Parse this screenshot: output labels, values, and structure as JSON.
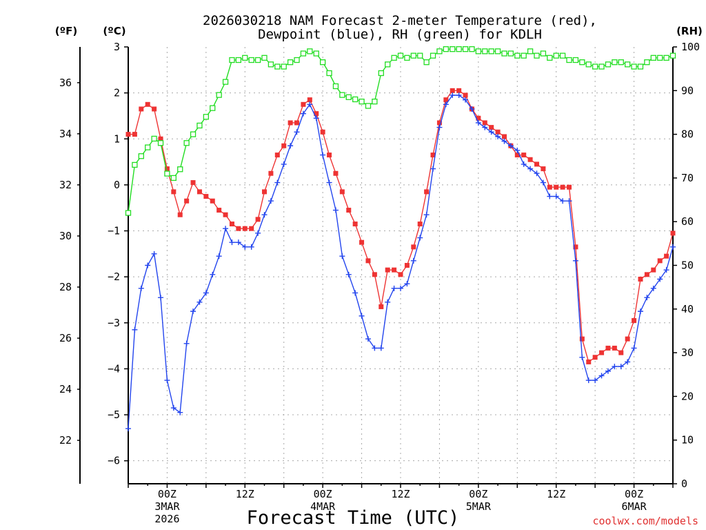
{
  "chart_data": {
    "type": "line",
    "title_line1": "2026030218 NAM Forecast 2-meter Temperature (red),",
    "title_line2": "Dewpoint (blue), RH (green) for KDLH",
    "xlabel": "Forecast Time (UTC)",
    "credit": "coolwx.com/models",
    "units": {
      "fahrenheit": "(ºF)",
      "celsius": "(ºC)",
      "rh": "(RH)"
    },
    "x_unit": "forecast hour",
    "x_range": [
      0,
      84
    ],
    "x_tick_labels": [
      {
        "hour": 6,
        "lines": [
          "00Z",
          "3MAR",
          "2026"
        ]
      },
      {
        "hour": 18,
        "lines": [
          "12Z"
        ]
      },
      {
        "hour": 30,
        "lines": [
          "00Z",
          "4MAR"
        ]
      },
      {
        "hour": 42,
        "lines": [
          "12Z"
        ]
      },
      {
        "hour": 54,
        "lines": [
          "00Z",
          "5MAR"
        ]
      },
      {
        "hour": 66,
        "lines": [
          "12Z"
        ]
      },
      {
        "hour": 78,
        "lines": [
          "00Z",
          "6MAR"
        ]
      }
    ],
    "y_left_celsius": {
      "range": [
        -6.5,
        3
      ],
      "ticks": [
        "3",
        "2",
        "1",
        "0",
        "−1",
        "−2",
        "−3",
        "−4",
        "−5",
        "−6"
      ],
      "tick_values": [
        3,
        2,
        1,
        0,
        -1,
        -2,
        -3,
        -4,
        -5,
        -6
      ]
    },
    "y_left_fahrenheit": {
      "range": [
        20.3,
        37.4
      ],
      "ticks": [
        "36",
        "34",
        "32",
        "30",
        "28",
        "26",
        "24",
        "22"
      ],
      "tick_values": [
        36,
        34,
        32,
        30,
        28,
        26,
        24,
        22
      ]
    },
    "y_right_rh": {
      "range": [
        0,
        100
      ],
      "ticks": [
        "100",
        "90",
        "80",
        "70",
        "60",
        "50",
        "40",
        "30",
        "20",
        "10",
        "0"
      ],
      "tick_values": [
        100,
        90,
        80,
        70,
        60,
        50,
        40,
        30,
        20,
        10,
        0
      ]
    },
    "grid": true,
    "series": [
      {
        "name": "Temperature",
        "axis": "celsius",
        "color": "#ee3333",
        "marker": "filled-square",
        "x": [
          0,
          1,
          2,
          3,
          4,
          5,
          6,
          7,
          8,
          9,
          10,
          11,
          12,
          13,
          14,
          15,
          16,
          17,
          18,
          19,
          20,
          21,
          22,
          23,
          24,
          25,
          26,
          27,
          28,
          29,
          30,
          31,
          32,
          33,
          34,
          35,
          36,
          37,
          38,
          39,
          40,
          41,
          42,
          43,
          44,
          45,
          46,
          47,
          48,
          49,
          50,
          51,
          52,
          53,
          54,
          55,
          56,
          57,
          58,
          59,
          60,
          61,
          62,
          63,
          64,
          65,
          66,
          67,
          68,
          69,
          70,
          71,
          72,
          73,
          74,
          75,
          76,
          77,
          78,
          79,
          80,
          81,
          82,
          83,
          84
        ],
        "values": [
          1.1,
          1.1,
          1.65,
          1.75,
          1.65,
          1.0,
          0.35,
          -0.15,
          -0.65,
          -0.35,
          0.05,
          -0.15,
          -0.25,
          -0.35,
          -0.55,
          -0.65,
          -0.85,
          -0.95,
          -0.95,
          -0.95,
          -0.75,
          -0.15,
          0.25,
          0.65,
          0.85,
          1.35,
          1.35,
          1.75,
          1.85,
          1.55,
          1.15,
          0.65,
          0.25,
          -0.15,
          -0.55,
          -0.85,
          -1.25,
          -1.65,
          -1.95,
          -2.65,
          -1.85,
          -1.85,
          -1.95,
          -1.75,
          -1.35,
          -0.85,
          -0.15,
          0.65,
          1.35,
          1.85,
          2.05,
          2.05,
          1.95,
          1.65,
          1.45,
          1.35,
          1.25,
          1.15,
          1.05,
          0.85,
          0.65,
          0.65,
          0.55,
          0.45,
          0.35,
          -0.05,
          -0.05,
          -0.05,
          -0.05,
          -1.35,
          -3.35,
          -3.85,
          -3.75,
          -3.65,
          -3.55,
          -3.55,
          -3.65,
          -3.35,
          -2.95,
          -2.05,
          -1.95,
          -1.85,
          -1.65,
          -1.55,
          -1.05
        ]
      },
      {
        "name": "Dewpoint",
        "axis": "celsius",
        "color": "#2244ee",
        "marker": "plus",
        "x": [
          0,
          1,
          2,
          3,
          4,
          5,
          6,
          7,
          8,
          9,
          10,
          11,
          12,
          13,
          14,
          15,
          16,
          17,
          18,
          19,
          20,
          21,
          22,
          23,
          24,
          25,
          26,
          27,
          28,
          29,
          30,
          31,
          32,
          33,
          34,
          35,
          36,
          37,
          38,
          39,
          40,
          41,
          42,
          43,
          44,
          45,
          46,
          47,
          48,
          49,
          50,
          51,
          52,
          53,
          54,
          55,
          56,
          57,
          58,
          59,
          60,
          61,
          62,
          63,
          64,
          65,
          66,
          67,
          68,
          69,
          70,
          71,
          72,
          73,
          74,
          75,
          76,
          77,
          78,
          79,
          80,
          81,
          82,
          83,
          84
        ],
        "values": [
          -5.3,
          -3.15,
          -2.25,
          -1.75,
          -1.5,
          -2.45,
          -4.25,
          -4.85,
          -4.95,
          -3.45,
          -2.75,
          -2.55,
          -2.35,
          -1.95,
          -1.55,
          -0.95,
          -1.25,
          -1.25,
          -1.35,
          -1.35,
          -1.05,
          -0.65,
          -0.35,
          0.05,
          0.45,
          0.85,
          1.15,
          1.55,
          1.75,
          1.45,
          0.65,
          0.05,
          -0.55,
          -1.55,
          -1.95,
          -2.35,
          -2.85,
          -3.35,
          -3.55,
          -3.55,
          -2.55,
          -2.25,
          -2.25,
          -2.15,
          -1.65,
          -1.15,
          -0.65,
          0.35,
          1.25,
          1.75,
          1.95,
          1.95,
          1.85,
          1.65,
          1.35,
          1.25,
          1.15,
          1.05,
          0.95,
          0.85,
          0.75,
          0.45,
          0.35,
          0.25,
          0.05,
          -0.25,
          -0.25,
          -0.35,
          -0.35,
          -1.65,
          -3.75,
          -4.25,
          -4.25,
          -4.15,
          -4.05,
          -3.95,
          -3.95,
          -3.85,
          -3.55,
          -2.75,
          -2.45,
          -2.25,
          -2.05,
          -1.85,
          -1.35
        ]
      },
      {
        "name": "RH",
        "axis": "rh",
        "color": "#22dd22",
        "marker": "open-square",
        "x": [
          0,
          1,
          2,
          3,
          4,
          5,
          6,
          7,
          8,
          9,
          10,
          11,
          12,
          13,
          14,
          15,
          16,
          17,
          18,
          19,
          20,
          21,
          22,
          23,
          24,
          25,
          26,
          27,
          28,
          29,
          30,
          31,
          32,
          33,
          34,
          35,
          36,
          37,
          38,
          39,
          40,
          41,
          42,
          43,
          44,
          45,
          46,
          47,
          48,
          49,
          50,
          51,
          52,
          53,
          54,
          55,
          56,
          57,
          58,
          59,
          60,
          61,
          62,
          63,
          64,
          65,
          66,
          67,
          68,
          69,
          70,
          71,
          72,
          73,
          74,
          75,
          76,
          77,
          78,
          79,
          80,
          81,
          82,
          83,
          84
        ],
        "values": [
          62,
          73,
          75,
          77,
          79,
          78,
          71,
          70,
          72,
          78,
          80,
          82,
          84,
          86,
          89,
          92,
          97,
          97,
          97.5,
          97,
          97,
          97.5,
          96,
          95.5,
          95.5,
          96.5,
          97,
          98.5,
          99,
          98.5,
          96.5,
          94,
          91,
          89,
          88.5,
          88,
          87.5,
          86.5,
          87.5,
          94,
          96,
          97.5,
          98,
          97.5,
          98,
          98,
          96.5,
          98,
          99,
          99.5,
          99.5,
          99.5,
          99.5,
          99.5,
          99,
          99,
          99,
          99,
          98.5,
          98.5,
          98,
          98,
          99,
          98,
          98.5,
          97.5,
          98,
          98,
          97,
          97,
          96.5,
          96,
          95.5,
          95.5,
          96,
          96.5,
          96.5,
          96,
          95.5,
          95.5,
          96.5,
          97.5,
          97.5,
          97.5,
          98
        ]
      }
    ]
  }
}
